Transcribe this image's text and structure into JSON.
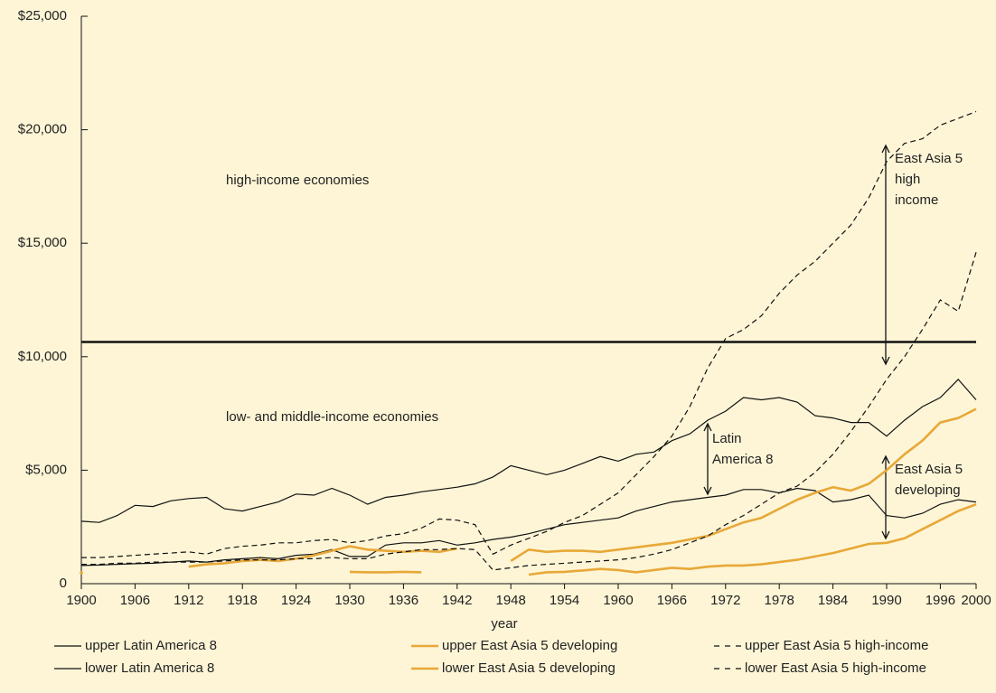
{
  "chart_data": {
    "type": "line",
    "x_label": "year",
    "x": [
      1900,
      1902,
      1904,
      1906,
      1908,
      1910,
      1912,
      1914,
      1916,
      1918,
      1920,
      1922,
      1924,
      1926,
      1928,
      1930,
      1932,
      1934,
      1936,
      1938,
      1940,
      1942,
      1944,
      1946,
      1948,
      1950,
      1952,
      1954,
      1956,
      1958,
      1960,
      1962,
      1964,
      1966,
      1968,
      1970,
      1972,
      1974,
      1976,
      1978,
      1980,
      1982,
      1984,
      1986,
      1988,
      1990,
      1992,
      1994,
      1996,
      1998,
      2000
    ],
    "xlim": [
      1900,
      2000
    ],
    "xticks": [
      1900,
      1906,
      1912,
      1918,
      1924,
      1930,
      1936,
      1942,
      1948,
      1954,
      1960,
      1966,
      1972,
      1978,
      1984,
      1990,
      1996,
      2000
    ],
    "ylim": [
      0,
      25000
    ],
    "yticks": [
      0,
      {
        "value": 5000,
        "label": "$5,000"
      },
      {
        "value": 10000,
        "label": "$10,000"
      },
      {
        "value": 15000,
        "label": "$15,000"
      },
      {
        "value": 20000,
        "label": "$20,000"
      },
      {
        "value": 25000,
        "label": "$25,000"
      }
    ],
    "divider": 10650,
    "annotations": [
      [
        "high-income economies"
      ],
      [
        "low- and middle-income economies"
      ],
      [
        "Latin",
        "America 8"
      ],
      [
        "East Asia 5",
        "high",
        "income"
      ],
      [
        "East Asia 5",
        "developing"
      ]
    ],
    "series": [
      {
        "name": "upper Latin America 8",
        "color": "#111111",
        "dashed": false,
        "values": [
          2750,
          2700,
          3000,
          3450,
          3400,
          3650,
          3750,
          3800,
          3300,
          3200,
          3400,
          3600,
          3950,
          3900,
          4200,
          3900,
          3500,
          3800,
          3900,
          4050,
          4150,
          4250,
          4400,
          4700,
          5200,
          5000,
          4800,
          5000,
          5300,
          5600,
          5400,
          5700,
          5800,
          6300,
          6600,
          7200,
          7600,
          8200,
          8100,
          8200,
          8000,
          7400,
          7300,
          7100,
          7100,
          6500,
          7200,
          7800,
          8200,
          9000,
          8100
        ]
      },
      {
        "name": "lower Latin America 8",
        "color": "#111111",
        "dashed": false,
        "values": [
          800,
          820,
          850,
          880,
          900,
          950,
          1000,
          950,
          1050,
          1100,
          1150,
          1100,
          1250,
          1300,
          1500,
          1200,
          1200,
          1700,
          1800,
          1800,
          1900,
          1700,
          1800,
          1950,
          2050,
          2200,
          2400,
          2600,
          2700,
          2800,
          2900,
          3200,
          3400,
          3600,
          3700,
          3800,
          3900,
          4150,
          4150,
          4000,
          4200,
          4100,
          3600,
          3700,
          3900,
          3000,
          2900,
          3100,
          3500,
          3700,
          3600
        ]
      },
      {
        "name": "upper East Asia 5 developing",
        "color": "#e8a838",
        "dashed": false,
        "values": [
          null,
          null,
          null,
          null,
          null,
          null,
          750,
          850,
          900,
          1000,
          1050,
          1000,
          1100,
          1250,
          1450,
          1650,
          1500,
          1450,
          1400,
          1450,
          1400,
          1550,
          null,
          null,
          1000,
          1500,
          1400,
          1450,
          1450,
          1400,
          1500,
          1600,
          1700,
          1800,
          1950,
          2100,
          2400,
          2700,
          2900,
          3300,
          3700,
          4000,
          4250,
          4100,
          4400,
          5000,
          5700,
          6300,
          7100,
          7300,
          7700
        ]
      },
      {
        "name": "lower East Asia 5 developing",
        "color": "#e8a838",
        "dashed": false,
        "values": [
          480,
          null,
          null,
          null,
          null,
          null,
          null,
          null,
          null,
          null,
          null,
          null,
          null,
          null,
          null,
          520,
          500,
          500,
          520,
          500,
          null,
          null,
          null,
          null,
          null,
          400,
          500,
          520,
          580,
          650,
          600,
          500,
          600,
          700,
          650,
          750,
          800,
          800,
          850,
          950,
          1050,
          1200,
          1350,
          1550,
          1750,
          1800,
          2000,
          2400,
          2800,
          3200,
          3500
        ]
      },
      {
        "name": "upper East Asia 5 high-income",
        "color": "#111111",
        "dashed": true,
        "values": [
          1150,
          1150,
          1200,
          1250,
          1300,
          1350,
          1400,
          1300,
          1550,
          1650,
          1700,
          1800,
          1800,
          1900,
          1950,
          1800,
          1900,
          2100,
          2200,
          2450,
          2850,
          2800,
          2600,
          1300,
          1700,
          2000,
          2300,
          2700,
          3000,
          3500,
          4000,
          4800,
          5600,
          6500,
          7800,
          9500,
          10800,
          11200,
          11800,
          12800,
          13600,
          14200,
          15000,
          15800,
          17000,
          18600,
          19400,
          19600,
          20200,
          20500,
          20800
        ]
      },
      {
        "name": "lower East Asia 5 high-income",
        "color": "#111111",
        "dashed": true,
        "values": [
          850,
          850,
          900,
          900,
          950,
          950,
          950,
          950,
          1000,
          1050,
          1050,
          1050,
          1100,
          1100,
          1150,
          1100,
          1100,
          1300,
          1400,
          1500,
          1500,
          1550,
          1500,
          600,
          700,
          800,
          850,
          900,
          950,
          1000,
          1050,
          1150,
          1300,
          1500,
          1800,
          2100,
          2600,
          3000,
          3500,
          4000,
          4300,
          4900,
          5700,
          6700,
          7800,
          9000,
          10000,
          11200,
          12500,
          12000,
          14600
        ]
      }
    ]
  }
}
